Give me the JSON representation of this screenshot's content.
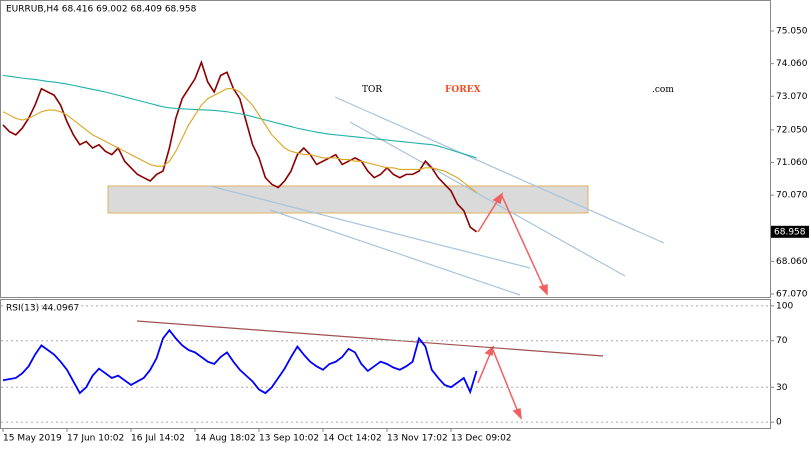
{
  "chart_data": [
    {
      "type": "line",
      "title": "EURRUB,H4 68.416 69.002 68.409 68.958",
      "logo": {
        "left": "TOR",
        "middle": "FOREX",
        "right": ".com"
      },
      "categories": [
        "15 May 2019",
        null,
        null,
        null,
        null,
        null,
        null,
        null,
        null,
        null,
        "17 Jun 10:02",
        null,
        null,
        null,
        null,
        null,
        null,
        null,
        null,
        null,
        "16 Jul 14:02",
        null,
        null,
        null,
        null,
        null,
        null,
        null,
        null,
        null,
        "14 Aug 18:02",
        null,
        null,
        null,
        null,
        null,
        null,
        null,
        null,
        null,
        "13 Sep 10:02",
        null,
        null,
        null,
        null,
        null,
        null,
        null,
        null,
        null,
        "14 Oct 14:02",
        null,
        null,
        null,
        null,
        null,
        null,
        null,
        null,
        null,
        "13 Nov 17:02",
        null,
        null,
        null,
        null,
        null,
        null,
        null,
        null,
        null,
        "13 Dec 09:02",
        null,
        null,
        null,
        null
      ],
      "series": [
        {
          "color": "#8b0000",
          "values": [
            72.2,
            72.0,
            71.9,
            72.1,
            72.4,
            72.8,
            73.3,
            73.2,
            73.1,
            72.8,
            72.3,
            71.9,
            71.6,
            71.7,
            71.5,
            71.6,
            71.4,
            71.3,
            71.5,
            71.1,
            70.9,
            70.7,
            70.6,
            70.5,
            70.7,
            70.8,
            71.5,
            72.4,
            73.0,
            73.3,
            73.6,
            74.1,
            73.5,
            73.2,
            73.7,
            73.8,
            73.3,
            73.0,
            72.3,
            71.6,
            71.2,
            70.6,
            70.4,
            70.3,
            70.5,
            70.8,
            71.3,
            71.5,
            71.3,
            71.0,
            71.1,
            71.2,
            71.3,
            71.0,
            71.1,
            71.2,
            71.1,
            70.8,
            70.6,
            70.7,
            70.9,
            70.7,
            70.6,
            70.7,
            70.7,
            70.8,
            71.1,
            70.9,
            70.6,
            70.4,
            70.2,
            69.8,
            69.6,
            69.1,
            68.958
          ]
        },
        {
          "color": "#20b2aa",
          "values": [
            73.7,
            73.68,
            73.65,
            73.62,
            73.6,
            73.58,
            73.55,
            73.52,
            73.5,
            73.47,
            73.44,
            73.4,
            73.36,
            73.32,
            73.28,
            73.24,
            73.2,
            73.15,
            73.1,
            73.05,
            73.0,
            72.95,
            72.9,
            72.85,
            72.8,
            72.75,
            72.72,
            72.7,
            72.69,
            72.68,
            72.67,
            72.66,
            72.65,
            72.64,
            72.62,
            72.6,
            72.57,
            72.54,
            72.5,
            72.45,
            72.4,
            72.35,
            72.3,
            72.25,
            72.2,
            72.15,
            72.1,
            72.06,
            72.02,
            71.98,
            71.95,
            71.92,
            71.9,
            71.88,
            71.86,
            71.84,
            71.82,
            71.8,
            71.78,
            71.76,
            71.74,
            71.72,
            71.7,
            71.68,
            71.66,
            71.64,
            71.62,
            71.6,
            71.56,
            71.5,
            71.44,
            71.38,
            71.32,
            71.26,
            71.2
          ]
        },
        {
          "color": "#daa520",
          "values": [
            72.6,
            72.5,
            72.4,
            72.35,
            72.4,
            72.5,
            72.6,
            72.65,
            72.65,
            72.6,
            72.5,
            72.35,
            72.2,
            72.05,
            71.9,
            71.8,
            71.7,
            71.6,
            71.5,
            71.4,
            71.3,
            71.2,
            71.1,
            71.0,
            70.95,
            70.95,
            71.1,
            71.4,
            71.8,
            72.2,
            72.5,
            72.8,
            73.0,
            73.1,
            73.2,
            73.3,
            73.3,
            73.2,
            73.0,
            72.8,
            72.5,
            72.2,
            71.9,
            71.7,
            71.5,
            71.4,
            71.35,
            71.3,
            71.3,
            71.25,
            71.2,
            71.2,
            71.2,
            71.15,
            71.15,
            71.1,
            71.1,
            71.05,
            71.0,
            70.95,
            70.9,
            70.9,
            70.85,
            70.85,
            70.85,
            70.85,
            70.9,
            70.9,
            70.85,
            70.8,
            70.7,
            70.6,
            70.45,
            70.3,
            70.15
          ]
        }
      ],
      "ylim": [
        66.98,
        75.93
      ],
      "yticks": [
        {
          "value": 67.07,
          "label": "67.070"
        },
        {
          "value": 68.06,
          "label": "68.060"
        },
        {
          "value": 70.07,
          "label": "70.070"
        },
        {
          "value": 71.06,
          "label": "71.060"
        },
        {
          "value": 72.05,
          "label": "72.050"
        },
        {
          "value": 73.07,
          "label": "73.070"
        },
        {
          "value": 74.06,
          "label": "74.060"
        },
        {
          "value": 75.05,
          "label": "75.050"
        }
      ],
      "grid": false
    },
    {
      "type": "line",
      "title": "RSI(13) 44.0967",
      "series": [
        {
          "color": "#0000ff",
          "values": [
            36,
            37,
            38,
            42,
            48,
            58,
            66,
            62,
            58,
            52,
            45,
            35,
            25,
            30,
            40,
            46,
            42,
            38,
            40,
            36,
            32,
            35,
            38,
            45,
            55,
            72,
            79,
            72,
            66,
            62,
            60,
            56,
            52,
            50,
            56,
            60,
            52,
            45,
            40,
            35,
            28,
            25,
            30,
            38,
            46,
            56,
            65,
            58,
            52,
            48,
            45,
            50,
            52,
            56,
            63,
            60,
            50,
            44,
            48,
            52,
            50,
            47,
            45,
            48,
            52,
            72,
            65,
            45,
            38,
            32,
            30,
            34,
            38,
            26,
            44.0967
          ]
        }
      ],
      "ylim": [
        -5,
        105
      ],
      "yticks": [
        0,
        30,
        70,
        100
      ],
      "grid": true
    }
  ]
}
